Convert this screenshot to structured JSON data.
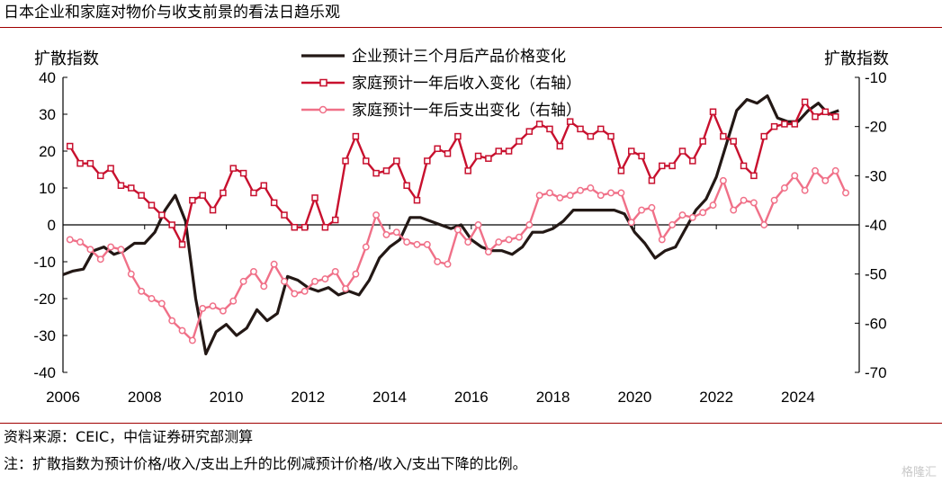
{
  "title": "日本企业和家庭对物价与收支前景的看法日趋乐观",
  "source": "资料来源：CEIC，中信证券研究部测算",
  "note": "注：扩散指数为预计价格/收入/支出上升的比例减预计价格/收入/支出下降的比例。",
  "watermark": "格隆汇",
  "colors": {
    "black": "#231815",
    "red": "#c8102e",
    "pink": "#f07088",
    "rule": "#a00000"
  },
  "chart_data": {
    "type": "line",
    "ylabel_left": "扩散指数",
    "ylabel_right": "扩散指数",
    "ylim_left": [
      -40,
      40
    ],
    "ylim_right": [
      -70,
      -10
    ],
    "yticks_left": [
      40,
      30,
      20,
      10,
      0,
      -10,
      -20,
      -30,
      -40
    ],
    "yticks_right": [
      -10,
      -20,
      -30,
      -40,
      -50,
      -60,
      -70
    ],
    "xlim": [
      2006,
      2025.5
    ],
    "xticks": [
      2006,
      2008,
      2010,
      2012,
      2014,
      2016,
      2018,
      2020,
      2022,
      2024
    ],
    "legend_placement": "top-center",
    "series": [
      {
        "name": "企业预计三个月后产品价格变化",
        "axis": "left",
        "color": "#231815",
        "marker": "none",
        "points": [
          [
            2006.0,
            -13.5
          ],
          [
            2006.25,
            -12.5
          ],
          [
            2006.5,
            -12
          ],
          [
            2006.75,
            -7
          ],
          [
            2007.0,
            -6
          ],
          [
            2007.25,
            -8
          ],
          [
            2007.5,
            -7
          ],
          [
            2007.75,
            -5
          ],
          [
            2008.0,
            -5
          ],
          [
            2008.25,
            -2
          ],
          [
            2008.5,
            4
          ],
          [
            2008.75,
            8
          ],
          [
            2009.0,
            1
          ],
          [
            2009.25,
            -20
          ],
          [
            2009.5,
            -35
          ],
          [
            2009.75,
            -29
          ],
          [
            2010.0,
            -27
          ],
          [
            2010.25,
            -30
          ],
          [
            2010.5,
            -28
          ],
          [
            2010.75,
            -23
          ],
          [
            2011.0,
            -26
          ],
          [
            2011.25,
            -24
          ],
          [
            2011.5,
            -14
          ],
          [
            2011.75,
            -15
          ],
          [
            2012.0,
            -17
          ],
          [
            2012.25,
            -18
          ],
          [
            2012.5,
            -17
          ],
          [
            2012.75,
            -19
          ],
          [
            2013.0,
            -18
          ],
          [
            2013.25,
            -19
          ],
          [
            2013.5,
            -15
          ],
          [
            2013.75,
            -9
          ],
          [
            2014.0,
            -6
          ],
          [
            2014.25,
            -4
          ],
          [
            2014.5,
            2
          ],
          [
            2014.75,
            2
          ],
          [
            2015.0,
            1
          ],
          [
            2015.25,
            0
          ],
          [
            2015.5,
            -1
          ],
          [
            2015.75,
            0
          ],
          [
            2016.0,
            -4
          ],
          [
            2016.25,
            -6
          ],
          [
            2016.5,
            -7
          ],
          [
            2016.75,
            -7
          ],
          [
            2017.0,
            -8
          ],
          [
            2017.25,
            -6
          ],
          [
            2017.5,
            -2
          ],
          [
            2017.75,
            -2
          ],
          [
            2018.0,
            -1
          ],
          [
            2018.25,
            1
          ],
          [
            2018.5,
            4
          ],
          [
            2018.75,
            4
          ],
          [
            2019.0,
            4
          ],
          [
            2019.25,
            4
          ],
          [
            2019.5,
            4
          ],
          [
            2019.75,
            3
          ],
          [
            2020.0,
            -2
          ],
          [
            2020.25,
            -5
          ],
          [
            2020.5,
            -9
          ],
          [
            2020.75,
            -7
          ],
          [
            2021.0,
            -6
          ],
          [
            2021.25,
            -1
          ],
          [
            2021.5,
            4
          ],
          [
            2021.75,
            7
          ],
          [
            2022.0,
            13
          ],
          [
            2022.25,
            22
          ],
          [
            2022.5,
            31
          ],
          [
            2022.75,
            34
          ],
          [
            2023.0,
            33
          ],
          [
            2023.25,
            35
          ],
          [
            2023.5,
            29
          ],
          [
            2023.75,
            28
          ],
          [
            2024.0,
            28
          ],
          [
            2024.25,
            31
          ],
          [
            2024.5,
            33
          ],
          [
            2024.75,
            30
          ],
          [
            2025.0,
            31
          ]
        ]
      },
      {
        "name": "家庭预计一年后收入变化（右轴）",
        "axis": "right",
        "color": "#c8102e",
        "marker": "square",
        "points": [
          [
            2006.17,
            -24
          ],
          [
            2006.42,
            -27.5
          ],
          [
            2006.67,
            -27.5
          ],
          [
            2006.92,
            -30
          ],
          [
            2007.17,
            -28.5
          ],
          [
            2007.42,
            -32
          ],
          [
            2007.67,
            -32.5
          ],
          [
            2007.92,
            -34
          ],
          [
            2008.17,
            -36
          ],
          [
            2008.42,
            -38
          ],
          [
            2008.67,
            -40
          ],
          [
            2008.92,
            -44
          ],
          [
            2009.17,
            -35
          ],
          [
            2009.42,
            -34
          ],
          [
            2009.67,
            -37
          ],
          [
            2009.92,
            -33.5
          ],
          [
            2010.17,
            -28.5
          ],
          [
            2010.42,
            -29.5
          ],
          [
            2010.67,
            -33.5
          ],
          [
            2010.92,
            -32
          ],
          [
            2011.17,
            -35.5
          ],
          [
            2011.42,
            -38
          ],
          [
            2011.67,
            -40.5
          ],
          [
            2011.92,
            -40.5
          ],
          [
            2012.17,
            -34.5
          ],
          [
            2012.42,
            -40.5
          ],
          [
            2012.67,
            -39
          ],
          [
            2012.92,
            -27
          ],
          [
            2013.17,
            -22
          ],
          [
            2013.42,
            -27
          ],
          [
            2013.67,
            -29.5
          ],
          [
            2013.92,
            -29
          ],
          [
            2014.17,
            -27
          ],
          [
            2014.42,
            -32
          ],
          [
            2014.67,
            -35
          ],
          [
            2014.92,
            -27
          ],
          [
            2015.17,
            -24.5
          ],
          [
            2015.42,
            -25.5
          ],
          [
            2015.67,
            -22
          ],
          [
            2015.92,
            -29
          ],
          [
            2016.17,
            -26
          ],
          [
            2016.42,
            -26.5
          ],
          [
            2016.67,
            -25
          ],
          [
            2016.92,
            -25
          ],
          [
            2017.17,
            -23
          ],
          [
            2017.42,
            -21
          ],
          [
            2017.67,
            -19.5
          ],
          [
            2017.92,
            -20.5
          ],
          [
            2018.17,
            -24
          ],
          [
            2018.42,
            -19
          ],
          [
            2018.67,
            -20.5
          ],
          [
            2018.92,
            -22
          ],
          [
            2019.17,
            -20.5
          ],
          [
            2019.42,
            -22
          ],
          [
            2019.67,
            -29
          ],
          [
            2019.92,
            -25
          ],
          [
            2020.17,
            -26
          ],
          [
            2020.42,
            -31
          ],
          [
            2020.67,
            -28
          ],
          [
            2020.92,
            -28
          ],
          [
            2021.17,
            -25
          ],
          [
            2021.42,
            -27
          ],
          [
            2021.67,
            -23
          ],
          [
            2021.92,
            -17
          ],
          [
            2022.17,
            -22
          ],
          [
            2022.42,
            -23
          ],
          [
            2022.67,
            -28
          ],
          [
            2022.92,
            -30
          ],
          [
            2023.17,
            -22
          ],
          [
            2023.42,
            -20
          ],
          [
            2023.67,
            -19.5
          ],
          [
            2023.92,
            -19.5
          ],
          [
            2024.17,
            -15
          ],
          [
            2024.42,
            -18
          ],
          [
            2024.67,
            -17
          ],
          [
            2024.92,
            -18
          ]
        ]
      },
      {
        "name": "家庭预计一年后支出变化（右轴）",
        "axis": "right",
        "color": "#f07088",
        "marker": "circle",
        "points": [
          [
            2006.17,
            -43
          ],
          [
            2006.42,
            -43.5
          ],
          [
            2006.67,
            -45
          ],
          [
            2006.92,
            -47
          ],
          [
            2007.17,
            -44.5
          ],
          [
            2007.42,
            -45
          ],
          [
            2007.67,
            -50
          ],
          [
            2007.92,
            -53.5
          ],
          [
            2008.17,
            -55
          ],
          [
            2008.42,
            -56
          ],
          [
            2008.67,
            -59.5
          ],
          [
            2008.92,
            -61.5
          ],
          [
            2009.17,
            -63.5
          ],
          [
            2009.42,
            -57
          ],
          [
            2009.67,
            -56.5
          ],
          [
            2009.92,
            -57.5
          ],
          [
            2010.17,
            -55.5
          ],
          [
            2010.42,
            -51.5
          ],
          [
            2010.67,
            -49.5
          ],
          [
            2010.92,
            -52.5
          ],
          [
            2011.17,
            -48
          ],
          [
            2011.42,
            -51.5
          ],
          [
            2011.67,
            -54
          ],
          [
            2011.92,
            -53.5
          ],
          [
            2012.17,
            -51.5
          ],
          [
            2012.42,
            -51
          ],
          [
            2012.67,
            -49.5
          ],
          [
            2012.92,
            -53
          ],
          [
            2013.17,
            -50
          ],
          [
            2013.42,
            -44.5
          ],
          [
            2013.67,
            -38
          ],
          [
            2013.92,
            -42
          ],
          [
            2014.17,
            -41.5
          ],
          [
            2014.42,
            -43.5
          ],
          [
            2014.67,
            -44
          ],
          [
            2014.92,
            -44
          ],
          [
            2015.17,
            -47.5
          ],
          [
            2015.42,
            -48
          ],
          [
            2015.67,
            -41
          ],
          [
            2015.92,
            -43.5
          ],
          [
            2016.17,
            -40
          ],
          [
            2016.42,
            -45.5
          ],
          [
            2016.67,
            -43.5
          ],
          [
            2016.92,
            -43
          ],
          [
            2017.17,
            -42.5
          ],
          [
            2017.42,
            -40
          ],
          [
            2017.67,
            -34
          ],
          [
            2017.92,
            -33.5
          ],
          [
            2018.17,
            -34.5
          ],
          [
            2018.42,
            -34
          ],
          [
            2018.67,
            -33
          ],
          [
            2018.92,
            -32.5
          ],
          [
            2019.17,
            -34
          ],
          [
            2019.42,
            -33.5
          ],
          [
            2019.67,
            -33.5
          ],
          [
            2019.92,
            -39.5
          ],
          [
            2020.17,
            -37
          ],
          [
            2020.42,
            -36.5
          ],
          [
            2020.67,
            -43
          ],
          [
            2020.92,
            -40
          ],
          [
            2021.17,
            -38
          ],
          [
            2021.42,
            -38.5
          ],
          [
            2021.67,
            -37.5
          ],
          [
            2021.92,
            -36
          ],
          [
            2022.17,
            -31
          ],
          [
            2022.42,
            -37
          ],
          [
            2022.67,
            -35
          ],
          [
            2022.92,
            -35.5
          ],
          [
            2023.17,
            -40
          ],
          [
            2023.42,
            -35
          ],
          [
            2023.67,
            -32.5
          ],
          [
            2023.92,
            -30
          ],
          [
            2024.17,
            -33
          ],
          [
            2024.42,
            -29
          ],
          [
            2024.67,
            -31
          ],
          [
            2024.92,
            -29
          ],
          [
            2025.17,
            -33.5
          ]
        ]
      }
    ]
  }
}
